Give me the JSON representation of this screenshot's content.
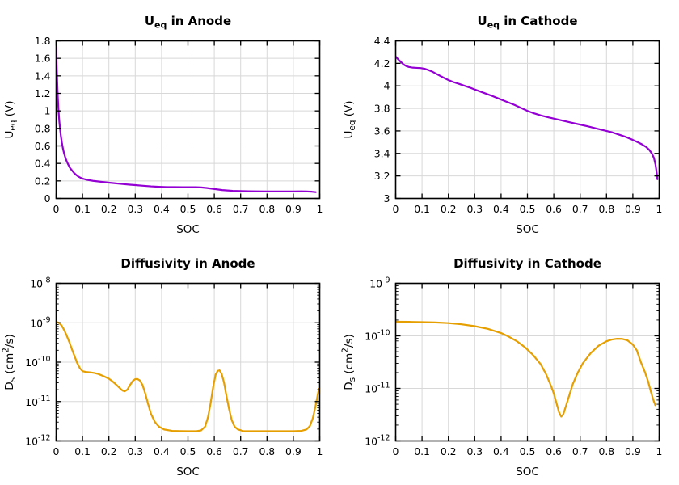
{
  "figure": {
    "background": "#ffffff",
    "grid_color": "#d8d8d8",
    "axis_color": "#000000",
    "text_color": "#000000",
    "anode_potential_color": "#9400d3",
    "cathode_potential_color": "#9400d3",
    "anode_diffusivity_color": "#e69f00",
    "cathode_diffusivity_color": "#e69f00"
  },
  "chart_data": [
    {
      "id": "ueq-anode",
      "type": "line",
      "title": [
        {
          "t": "U"
        },
        {
          "t": "eq",
          "pos": "sub"
        },
        {
          "t": " in Anode"
        }
      ],
      "xlabel": "SOC",
      "ylabel": [
        {
          "t": "U"
        },
        {
          "t": "eq",
          "pos": "sub"
        },
        {
          "t": " (V)"
        }
      ],
      "xlim": [
        0,
        1
      ],
      "ylim": [
        0,
        1.8
      ],
      "yscale": "linear",
      "grid": true,
      "legend": "none",
      "color": "#9400d3",
      "xticks": [
        {
          "v": 0,
          "l": "0"
        },
        {
          "v": 0.1,
          "l": "0.1"
        },
        {
          "v": 0.2,
          "l": "0.2"
        },
        {
          "v": 0.3,
          "l": "0.3"
        },
        {
          "v": 0.4,
          "l": "0.4"
        },
        {
          "v": 0.5,
          "l": "0.5"
        },
        {
          "v": 0.6,
          "l": "0.6"
        },
        {
          "v": 0.7,
          "l": "0.7"
        },
        {
          "v": 0.8,
          "l": "0.8"
        },
        {
          "v": 0.9,
          "l": "0.9"
        },
        {
          "v": 1,
          "l": "1"
        }
      ],
      "yticks": [
        {
          "v": 0,
          "l": "0"
        },
        {
          "v": 0.2,
          "l": "0.2"
        },
        {
          "v": 0.4,
          "l": "0.4"
        },
        {
          "v": 0.6,
          "l": "0.6"
        },
        {
          "v": 0.8,
          "l": "0.8"
        },
        {
          "v": 1,
          "l": "1"
        },
        {
          "v": 1.2,
          "l": "1.2"
        },
        {
          "v": 1.4,
          "l": "1.4"
        },
        {
          "v": 1.6,
          "l": "1.6"
        },
        {
          "v": 1.8,
          "l": "1.8"
        }
      ],
      "points": [
        [
          0,
          1.73
        ],
        [
          0.002,
          1.52
        ],
        [
          0.004,
          1.33
        ],
        [
          0.006,
          1.17
        ],
        [
          0.009,
          1.0
        ],
        [
          0.012,
          0.88
        ],
        [
          0.015,
          0.79
        ],
        [
          0.018,
          0.71
        ],
        [
          0.022,
          0.63
        ],
        [
          0.026,
          0.565
        ],
        [
          0.03,
          0.515
        ],
        [
          0.035,
          0.465
        ],
        [
          0.04,
          0.425
        ],
        [
          0.046,
          0.385
        ],
        [
          0.052,
          0.35
        ],
        [
          0.06,
          0.32
        ],
        [
          0.068,
          0.29
        ],
        [
          0.076,
          0.268
        ],
        [
          0.084,
          0.25
        ],
        [
          0.092,
          0.237
        ],
        [
          0.1,
          0.227
        ],
        [
          0.11,
          0.218
        ],
        [
          0.12,
          0.211
        ],
        [
          0.14,
          0.201
        ],
        [
          0.16,
          0.194
        ],
        [
          0.18,
          0.187
        ],
        [
          0.2,
          0.18
        ],
        [
          0.22,
          0.174
        ],
        [
          0.24,
          0.168
        ],
        [
          0.26,
          0.162
        ],
        [
          0.28,
          0.157
        ],
        [
          0.3,
          0.152
        ],
        [
          0.33,
          0.145
        ],
        [
          0.36,
          0.138
        ],
        [
          0.39,
          0.133
        ],
        [
          0.42,
          0.13
        ],
        [
          0.45,
          0.129
        ],
        [
          0.48,
          0.128
        ],
        [
          0.51,
          0.128
        ],
        [
          0.53,
          0.128
        ],
        [
          0.55,
          0.126
        ],
        [
          0.57,
          0.12
        ],
        [
          0.59,
          0.112
        ],
        [
          0.61,
          0.104
        ],
        [
          0.63,
          0.096
        ],
        [
          0.65,
          0.091
        ],
        [
          0.67,
          0.087
        ],
        [
          0.7,
          0.084
        ],
        [
          0.73,
          0.082
        ],
        [
          0.76,
          0.081
        ],
        [
          0.8,
          0.08
        ],
        [
          0.85,
          0.08
        ],
        [
          0.9,
          0.08
        ],
        [
          0.93,
          0.081
        ],
        [
          0.95,
          0.08
        ],
        [
          0.97,
          0.077
        ],
        [
          0.985,
          0.072
        ]
      ]
    },
    {
      "id": "ueq-cathode",
      "type": "line",
      "title": [
        {
          "t": "U"
        },
        {
          "t": "eq",
          "pos": "sub"
        },
        {
          "t": " in Cathode"
        }
      ],
      "xlabel": "SOC",
      "ylabel": [
        {
          "t": "U"
        },
        {
          "t": "eq",
          "pos": "sub"
        },
        {
          "t": " (V)"
        }
      ],
      "xlim": [
        0,
        1
      ],
      "ylim": [
        3,
        4.4
      ],
      "yscale": "linear",
      "grid": true,
      "legend": "none",
      "color": "#9400d3",
      "xticks": [
        {
          "v": 0,
          "l": "0"
        },
        {
          "v": 0.1,
          "l": "0.1"
        },
        {
          "v": 0.2,
          "l": "0.2"
        },
        {
          "v": 0.3,
          "l": "0.3"
        },
        {
          "v": 0.4,
          "l": "0.4"
        },
        {
          "v": 0.5,
          "l": "0.5"
        },
        {
          "v": 0.6,
          "l": "0.6"
        },
        {
          "v": 0.7,
          "l": "0.7"
        },
        {
          "v": 0.8,
          "l": "0.8"
        },
        {
          "v": 0.9,
          "l": "0.9"
        },
        {
          "v": 1,
          "l": "1"
        }
      ],
      "yticks": [
        {
          "v": 3,
          "l": "3"
        },
        {
          "v": 3.2,
          "l": "3.2"
        },
        {
          "v": 3.4,
          "l": "3.4"
        },
        {
          "v": 3.6,
          "l": "3.6"
        },
        {
          "v": 3.8,
          "l": "3.8"
        },
        {
          "v": 4,
          "l": "4"
        },
        {
          "v": 4.2,
          "l": "4.2"
        },
        {
          "v": 4.4,
          "l": "4.4"
        }
      ],
      "points": [
        [
          0,
          4.26
        ],
        [
          0.01,
          4.235
        ],
        [
          0.02,
          4.212
        ],
        [
          0.03,
          4.19
        ],
        [
          0.04,
          4.176
        ],
        [
          0.05,
          4.168
        ],
        [
          0.065,
          4.162
        ],
        [
          0.08,
          4.16
        ],
        [
          0.095,
          4.158
        ],
        [
          0.11,
          4.152
        ],
        [
          0.125,
          4.14
        ],
        [
          0.14,
          4.125
        ],
        [
          0.16,
          4.1
        ],
        [
          0.18,
          4.075
        ],
        [
          0.2,
          4.052
        ],
        [
          0.22,
          4.033
        ],
        [
          0.24,
          4.018
        ],
        [
          0.26,
          4.002
        ],
        [
          0.28,
          3.986
        ],
        [
          0.3,
          3.968
        ],
        [
          0.33,
          3.942
        ],
        [
          0.36,
          3.916
        ],
        [
          0.39,
          3.888
        ],
        [
          0.42,
          3.86
        ],
        [
          0.45,
          3.832
        ],
        [
          0.48,
          3.8
        ],
        [
          0.5,
          3.778
        ],
        [
          0.52,
          3.76
        ],
        [
          0.55,
          3.738
        ],
        [
          0.58,
          3.72
        ],
        [
          0.61,
          3.704
        ],
        [
          0.64,
          3.688
        ],
        [
          0.67,
          3.672
        ],
        [
          0.7,
          3.656
        ],
        [
          0.73,
          3.64
        ],
        [
          0.76,
          3.622
        ],
        [
          0.79,
          3.605
        ],
        [
          0.82,
          3.588
        ],
        [
          0.85,
          3.565
        ],
        [
          0.875,
          3.545
        ],
        [
          0.9,
          3.52
        ],
        [
          0.92,
          3.498
        ],
        [
          0.935,
          3.48
        ],
        [
          0.95,
          3.458
        ],
        [
          0.962,
          3.432
        ],
        [
          0.972,
          3.4
        ],
        [
          0.98,
          3.36
        ],
        [
          0.986,
          3.3
        ],
        [
          0.991,
          3.22
        ],
        [
          0.993,
          3.17
        ]
      ]
    },
    {
      "id": "diffusivity-anode",
      "type": "line",
      "title": [
        {
          "t": "Diffusivity in Anode"
        }
      ],
      "xlabel": "SOC",
      "ylabel": [
        {
          "t": "D"
        },
        {
          "t": "s",
          "pos": "sub"
        },
        {
          "t": " (cm"
        },
        {
          "t": "2",
          "pos": "sup"
        },
        {
          "t": "/s)"
        }
      ],
      "xlim": [
        0,
        1
      ],
      "ylim": [
        1e-12,
        1e-08
      ],
      "yscale": "log",
      "grid": true,
      "legend": "none",
      "color": "#e69f00",
      "xticks": [
        {
          "v": 0,
          "l": "0"
        },
        {
          "v": 0.1,
          "l": "0.1"
        },
        {
          "v": 0.2,
          "l": "0.2"
        },
        {
          "v": 0.3,
          "l": "0.3"
        },
        {
          "v": 0.4,
          "l": "0.4"
        },
        {
          "v": 0.5,
          "l": "0.5"
        },
        {
          "v": 0.6,
          "l": "0.6"
        },
        {
          "v": 0.7,
          "l": "0.7"
        },
        {
          "v": 0.8,
          "l": "0.8"
        },
        {
          "v": 0.9,
          "l": "0.9"
        },
        {
          "v": 1,
          "l": "1"
        }
      ],
      "yticks": [
        {
          "v": 1e-12,
          "base": "10",
          "exp": "-12"
        },
        {
          "v": 1e-11,
          "base": "10",
          "exp": "-11"
        },
        {
          "v": 1e-10,
          "base": "10",
          "exp": "-10"
        },
        {
          "v": 1e-09,
          "base": "10",
          "exp": "-9"
        },
        {
          "v": 1e-08,
          "base": "10",
          "exp": "-8"
        }
      ],
      "points": [
        [
          0,
          1.05e-09
        ],
        [
          0.01,
          1e-09
        ],
        [
          0.02,
          8.6e-10
        ],
        [
          0.03,
          6.6e-10
        ],
        [
          0.04,
          4.7e-10
        ],
        [
          0.05,
          3.2e-10
        ],
        [
          0.06,
          2.1e-10
        ],
        [
          0.07,
          1.4e-10
        ],
        [
          0.08,
          9.4e-11
        ],
        [
          0.09,
          7e-11
        ],
        [
          0.1,
          5.9e-11
        ],
        [
          0.115,
          5.6e-11
        ],
        [
          0.13,
          5.5e-11
        ],
        [
          0.145,
          5.3e-11
        ],
        [
          0.16,
          5e-11
        ],
        [
          0.18,
          4.4e-11
        ],
        [
          0.2,
          3.8e-11
        ],
        [
          0.215,
          3.2e-11
        ],
        [
          0.23,
          2.6e-11
        ],
        [
          0.243,
          2.15e-11
        ],
        [
          0.252,
          1.9e-11
        ],
        [
          0.26,
          1.82e-11
        ],
        [
          0.27,
          2e-11
        ],
        [
          0.28,
          2.6e-11
        ],
        [
          0.29,
          3.3e-11
        ],
        [
          0.3,
          3.7e-11
        ],
        [
          0.308,
          3.75e-11
        ],
        [
          0.318,
          3.4e-11
        ],
        [
          0.328,
          2.6e-11
        ],
        [
          0.338,
          1.6e-11
        ],
        [
          0.348,
          9e-12
        ],
        [
          0.36,
          4.8e-12
        ],
        [
          0.375,
          3e-12
        ],
        [
          0.39,
          2.3e-12
        ],
        [
          0.41,
          1.95e-12
        ],
        [
          0.44,
          1.8e-12
        ],
        [
          0.47,
          1.78e-12
        ],
        [
          0.5,
          1.76e-12
        ],
        [
          0.53,
          1.76e-12
        ],
        [
          0.55,
          1.85e-12
        ],
        [
          0.565,
          2.3e-12
        ],
        [
          0.576,
          4e-12
        ],
        [
          0.586,
          9e-12
        ],
        [
          0.596,
          2.4e-11
        ],
        [
          0.605,
          4.8e-11
        ],
        [
          0.613,
          6e-11
        ],
        [
          0.62,
          6.2e-11
        ],
        [
          0.628,
          5e-11
        ],
        [
          0.637,
          3e-11
        ],
        [
          0.646,
          1.4e-11
        ],
        [
          0.656,
          6.5e-12
        ],
        [
          0.666,
          3.4e-12
        ],
        [
          0.677,
          2.3e-12
        ],
        [
          0.69,
          1.95e-12
        ],
        [
          0.71,
          1.78e-12
        ],
        [
          0.75,
          1.76e-12
        ],
        [
          0.8,
          1.76e-12
        ],
        [
          0.85,
          1.76e-12
        ],
        [
          0.9,
          1.76e-12
        ],
        [
          0.93,
          1.8e-12
        ],
        [
          0.95,
          1.95e-12
        ],
        [
          0.963,
          2.4e-12
        ],
        [
          0.974,
          3.8e-12
        ],
        [
          0.983,
          7e-12
        ],
        [
          0.991,
          1.3e-11
        ],
        [
          0.997,
          2.1e-11
        ]
      ]
    },
    {
      "id": "diffusivity-cathode",
      "type": "line",
      "title": [
        {
          "t": "Diffusivity in Cathode"
        }
      ],
      "xlabel": "SOC",
      "ylabel": [
        {
          "t": "D"
        },
        {
          "t": "s",
          "pos": "sub"
        },
        {
          "t": " (cm"
        },
        {
          "t": "2",
          "pos": "sup"
        },
        {
          "t": "/s)"
        }
      ],
      "xlim": [
        0,
        1
      ],
      "ylim": [
        1e-12,
        1e-09
      ],
      "yscale": "log",
      "grid": true,
      "legend": "none",
      "color": "#e69f00",
      "xticks": [
        {
          "v": 0,
          "l": "0"
        },
        {
          "v": 0.1,
          "l": "0.1"
        },
        {
          "v": 0.2,
          "l": "0.2"
        },
        {
          "v": 0.3,
          "l": "0.3"
        },
        {
          "v": 0.4,
          "l": "0.4"
        },
        {
          "v": 0.5,
          "l": "0.5"
        },
        {
          "v": 0.6,
          "l": "0.6"
        },
        {
          "v": 0.7,
          "l": "0.7"
        },
        {
          "v": 0.8,
          "l": "0.8"
        },
        {
          "v": 0.9,
          "l": "0.9"
        },
        {
          "v": 1,
          "l": "1"
        }
      ],
      "yticks": [
        {
          "v": 1e-12,
          "base": "10",
          "exp": "-12"
        },
        {
          "v": 1e-11,
          "base": "10",
          "exp": "-11"
        },
        {
          "v": 1e-10,
          "base": "10",
          "exp": "-10"
        },
        {
          "v": 1e-09,
          "base": "10",
          "exp": "-9"
        }
      ],
      "points": [
        [
          0,
          1.86e-10
        ],
        [
          0.05,
          1.85e-10
        ],
        [
          0.1,
          1.83e-10
        ],
        [
          0.15,
          1.8e-10
        ],
        [
          0.2,
          1.75e-10
        ],
        [
          0.25,
          1.66e-10
        ],
        [
          0.3,
          1.53e-10
        ],
        [
          0.35,
          1.36e-10
        ],
        [
          0.4,
          1.13e-10
        ],
        [
          0.43,
          9.6e-11
        ],
        [
          0.46,
          7.9e-11
        ],
        [
          0.49,
          6.1e-11
        ],
        [
          0.52,
          4.4e-11
        ],
        [
          0.55,
          2.9e-11
        ],
        [
          0.57,
          1.9e-11
        ],
        [
          0.59,
          1.1e-11
        ],
        [
          0.6,
          8e-12
        ],
        [
          0.61,
          5.3e-12
        ],
        [
          0.62,
          3.5e-12
        ],
        [
          0.628,
          2.9e-12
        ],
        [
          0.636,
          3.2e-12
        ],
        [
          0.646,
          4.6e-12
        ],
        [
          0.658,
          7.2e-12
        ],
        [
          0.672,
          1.2e-11
        ],
        [
          0.69,
          1.95e-11
        ],
        [
          0.71,
          3e-11
        ],
        [
          0.74,
          4.7e-11
        ],
        [
          0.77,
          6.5e-11
        ],
        [
          0.8,
          7.9e-11
        ],
        [
          0.82,
          8.5e-11
        ],
        [
          0.84,
          8.8e-11
        ],
        [
          0.86,
          8.75e-11
        ],
        [
          0.88,
          8.2e-11
        ],
        [
          0.9,
          6.8e-11
        ],
        [
          0.915,
          5.3e-11
        ],
        [
          0.93,
          3.2e-11
        ],
        [
          0.945,
          2.1e-11
        ],
        [
          0.958,
          1.35e-11
        ],
        [
          0.968,
          8.8e-12
        ],
        [
          0.977,
          6.2e-12
        ],
        [
          0.985,
          4.8e-12
        ]
      ]
    }
  ]
}
